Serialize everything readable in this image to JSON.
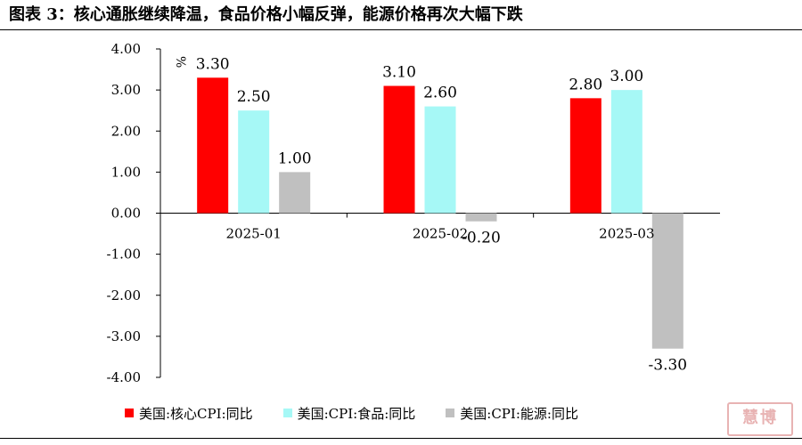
{
  "title": "图表 3：核心通胀继续降温，食品价格小幅反弹，能源价格再次大幅下跌",
  "chart_data": {
    "type": "bar",
    "categories": [
      "2025-01",
      "2025-02",
      "2025-03"
    ],
    "series": [
      {
        "name": "美国:核心CPI:同比",
        "values": [
          3.3,
          3.1,
          2.8
        ],
        "color": "#ff0000"
      },
      {
        "name": "美国:CPI:食品:同比",
        "values": [
          2.5,
          2.6,
          3.0
        ],
        "color": "#a6f8f6"
      },
      {
        "name": "美国:CPI:能源:同比",
        "values": [
          1.0,
          -0.2,
          -3.3
        ],
        "color": "#c0c0c0"
      }
    ],
    "ylabel": "%",
    "ylim": [
      -4,
      4
    ],
    "yticks": [
      "-4.00",
      "-3.00",
      "-2.00",
      "-1.00",
      "0.00",
      "1.00",
      "2.00",
      "3.00",
      "4.00"
    ],
    "value_labels": [
      [
        "3.30",
        "3.10",
        "2.80"
      ],
      [
        "2.50",
        "2.60",
        "3.00"
      ],
      [
        "1.00",
        "-0.20",
        "-3.30"
      ]
    ],
    "grid": false,
    "legend_position": "bottom"
  },
  "stamp_text": "慧博"
}
